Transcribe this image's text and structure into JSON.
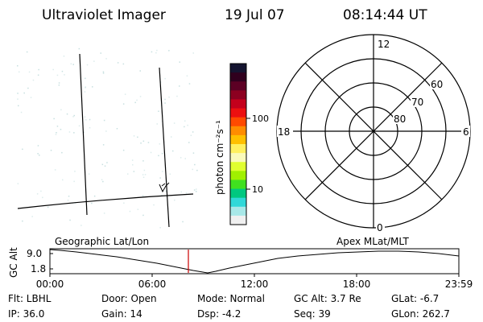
{
  "header": {
    "instrument": "Ultraviolet Imager",
    "date": "19 Jul 07",
    "time": "08:14:44 UT"
  },
  "colorbar": {
    "unit_label": "photon cm⁻²s⁻¹",
    "ticks": [
      "100",
      "10"
    ],
    "colors": [
      "#141430",
      "#30001e",
      "#5c0024",
      "#8c0020",
      "#c4001c",
      "#ec1010",
      "#ff4a00",
      "#ff8c00",
      "#ffc000",
      "#fff060",
      "#fafabb",
      "#e0ff30",
      "#a0f000",
      "#40e020",
      "#00c880",
      "#30d8d8",
      "#a8e8e8",
      "#f0f0f0"
    ]
  },
  "polar": {
    "lat_labels": [
      "60",
      "70",
      "80"
    ],
    "mlt_labels": {
      "top": "12",
      "left": "18",
      "right": "6",
      "bottom": "0"
    }
  },
  "orbit": {
    "left_title": "Geographic Lat/Lon",
    "right_title": "Apex MLat/MLT",
    "y_axis_label": "GC Alt",
    "y_ticks": [
      "9.0",
      "1.8"
    ],
    "x_ticks": [
      "00:00",
      "06:00",
      "12:00",
      "18:00",
      "23:59"
    ],
    "marker_color": "#cc0000"
  },
  "footer": {
    "rows": [
      [
        "Flt: LBHL",
        "Door: Open",
        "Mode: Normal",
        "GC Alt: 3.7 Re",
        "GLat: -6.7"
      ],
      [
        "IP: 36.0",
        "Gain: 14",
        "Dsp: -4.2",
        "Seq: 39",
        "GLon: 262.7"
      ]
    ]
  }
}
